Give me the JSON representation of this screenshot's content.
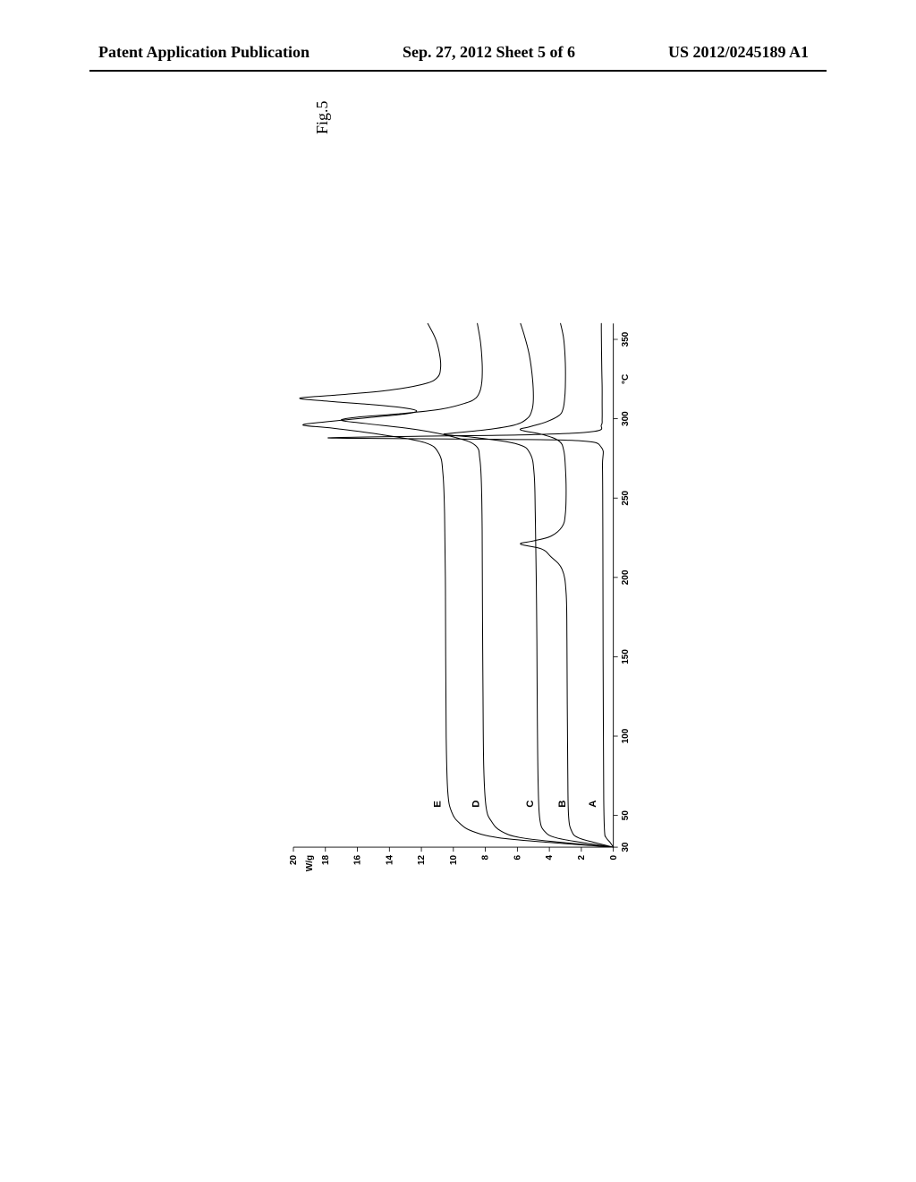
{
  "header": {
    "left": "Patent Application Publication",
    "center": "Sep. 27, 2012  Sheet 5 of 6",
    "right": "US 2012/0245189 A1"
  },
  "figure": {
    "label": "Fig.5",
    "type": "line",
    "background_color": "#ffffff",
    "line_color": "#000000",
    "line_width": 1.6,
    "axis_color": "#000000",
    "font_family": "Arial",
    "tick_fontsize": 16,
    "label_fontsize": 18,
    "x": {
      "unit": "°C",
      "min": 30,
      "max": 360,
      "ticks": [
        30,
        50,
        100,
        150,
        200,
        250,
        300,
        350
      ]
    },
    "y": {
      "unit": "W/g",
      "min": 0,
      "max": 20,
      "ticks": [
        0,
        2,
        4,
        6,
        8,
        10,
        12,
        14,
        16,
        18,
        20
      ]
    },
    "series": [
      {
        "name": "A",
        "label_pos": {
          "x": 55,
          "y": 1.1
        },
        "color": "#000000",
        "points": [
          [
            30,
            0.0
          ],
          [
            33,
            0.2
          ],
          [
            36,
            0.45
          ],
          [
            40,
            0.55
          ],
          [
            60,
            0.6
          ],
          [
            100,
            0.62
          ],
          [
            150,
            0.64
          ],
          [
            200,
            0.65
          ],
          [
            240,
            0.66
          ],
          [
            270,
            0.68
          ],
          [
            282,
            0.75
          ],
          [
            286,
            2.0
          ],
          [
            287,
            7.0
          ],
          [
            287.5,
            14.0
          ],
          [
            288,
            17.8
          ],
          [
            289,
            12.0
          ],
          [
            290,
            5.0
          ],
          [
            292,
            1.2
          ],
          [
            296,
            0.75
          ],
          [
            300,
            0.7
          ],
          [
            310,
            0.7
          ],
          [
            320,
            0.7
          ],
          [
            330,
            0.72
          ],
          [
            345,
            0.74
          ],
          [
            355,
            0.75
          ],
          [
            360,
            0.75
          ]
        ]
      },
      {
        "name": "B",
        "label_pos": {
          "x": 55,
          "y": 3.0
        },
        "color": "#000000",
        "points": [
          [
            30,
            0.0
          ],
          [
            33,
            1.2
          ],
          [
            36,
            2.2
          ],
          [
            40,
            2.6
          ],
          [
            50,
            2.8
          ],
          [
            80,
            2.85
          ],
          [
            120,
            2.88
          ],
          [
            160,
            2.9
          ],
          [
            190,
            2.95
          ],
          [
            205,
            3.2
          ],
          [
            213,
            3.9
          ],
          [
            218,
            4.5
          ],
          [
            221,
            5.8
          ],
          [
            223,
            5.0
          ],
          [
            226,
            3.9
          ],
          [
            232,
            3.2
          ],
          [
            240,
            3.0
          ],
          [
            255,
            2.95
          ],
          [
            270,
            3.0
          ],
          [
            280,
            3.1
          ],
          [
            286,
            3.4
          ],
          [
            290,
            4.4
          ],
          [
            293,
            5.8
          ],
          [
            295,
            5.2
          ],
          [
            298,
            4.2
          ],
          [
            302,
            3.4
          ],
          [
            306,
            3.15
          ],
          [
            312,
            3.05
          ],
          [
            320,
            3.0
          ],
          [
            335,
            3.0
          ],
          [
            350,
            3.1
          ],
          [
            360,
            3.3
          ]
        ]
      },
      {
        "name": "C",
        "label_pos": {
          "x": 55,
          "y": 5.0
        },
        "color": "#000000",
        "points": [
          [
            30,
            0.0
          ],
          [
            33,
            2.0
          ],
          [
            36,
            3.6
          ],
          [
            40,
            4.3
          ],
          [
            48,
            4.6
          ],
          [
            70,
            4.7
          ],
          [
            110,
            4.75
          ],
          [
            160,
            4.78
          ],
          [
            200,
            4.82
          ],
          [
            240,
            4.88
          ],
          [
            265,
            4.95
          ],
          [
            278,
            5.2
          ],
          [
            284,
            6.0
          ],
          [
            288,
            8.5
          ],
          [
            290,
            10.5
          ],
          [
            291,
            10.0
          ],
          [
            293,
            8.0
          ],
          [
            296,
            6.2
          ],
          [
            300,
            5.4
          ],
          [
            305,
            5.1
          ],
          [
            312,
            5.0
          ],
          [
            325,
            5.05
          ],
          [
            340,
            5.25
          ],
          [
            352,
            5.55
          ],
          [
            360,
            5.8
          ]
        ]
      },
      {
        "name": "D",
        "label_pos": {
          "x": 55,
          "y": 8.4
        },
        "color": "#000000",
        "points": [
          [
            30,
            0.0
          ],
          [
            33,
            3.2
          ],
          [
            36,
            5.8
          ],
          [
            40,
            7.0
          ],
          [
            46,
            7.6
          ],
          [
            55,
            7.95
          ],
          [
            80,
            8.1
          ],
          [
            130,
            8.15
          ],
          [
            180,
            8.18
          ],
          [
            230,
            8.2
          ],
          [
            260,
            8.25
          ],
          [
            275,
            8.35
          ],
          [
            283,
            8.6
          ],
          [
            288,
            9.8
          ],
          [
            293,
            12.2
          ],
          [
            297,
            15.5
          ],
          [
            299,
            17.0
          ],
          [
            301,
            16.0
          ],
          [
            303,
            13.5
          ],
          [
            306,
            10.8
          ],
          [
            310,
            9.2
          ],
          [
            313,
            8.6
          ],
          [
            317,
            8.35
          ],
          [
            321,
            8.25
          ],
          [
            326,
            8.2
          ],
          [
            335,
            8.2
          ],
          [
            348,
            8.3
          ],
          [
            360,
            8.5
          ]
        ]
      },
      {
        "name": "E",
        "label_pos": {
          "x": 55,
          "y": 10.8
        },
        "color": "#000000",
        "points": [
          [
            30,
            0.0
          ],
          [
            33,
            4.0
          ],
          [
            36,
            7.2
          ],
          [
            40,
            8.8
          ],
          [
            45,
            9.6
          ],
          [
            52,
            10.1
          ],
          [
            65,
            10.35
          ],
          [
            100,
            10.45
          ],
          [
            150,
            10.48
          ],
          [
            200,
            10.5
          ],
          [
            240,
            10.55
          ],
          [
            265,
            10.65
          ],
          [
            278,
            10.9
          ],
          [
            285,
            11.8
          ],
          [
            290,
            14.5
          ],
          [
            294,
            17.5
          ],
          [
            296,
            19.4
          ],
          [
            298,
            18.0
          ],
          [
            301,
            15.0
          ],
          [
            303,
            13.0
          ],
          [
            305,
            12.3
          ],
          [
            307,
            13.2
          ],
          [
            309,
            15.2
          ],
          [
            311,
            17.8
          ],
          [
            313,
            19.6
          ],
          [
            315,
            17.2
          ],
          [
            318,
            14.0
          ],
          [
            322,
            11.8
          ],
          [
            326,
            11.0
          ],
          [
            332,
            10.8
          ],
          [
            340,
            10.85
          ],
          [
            350,
            11.1
          ],
          [
            360,
            11.6
          ]
        ]
      }
    ]
  }
}
